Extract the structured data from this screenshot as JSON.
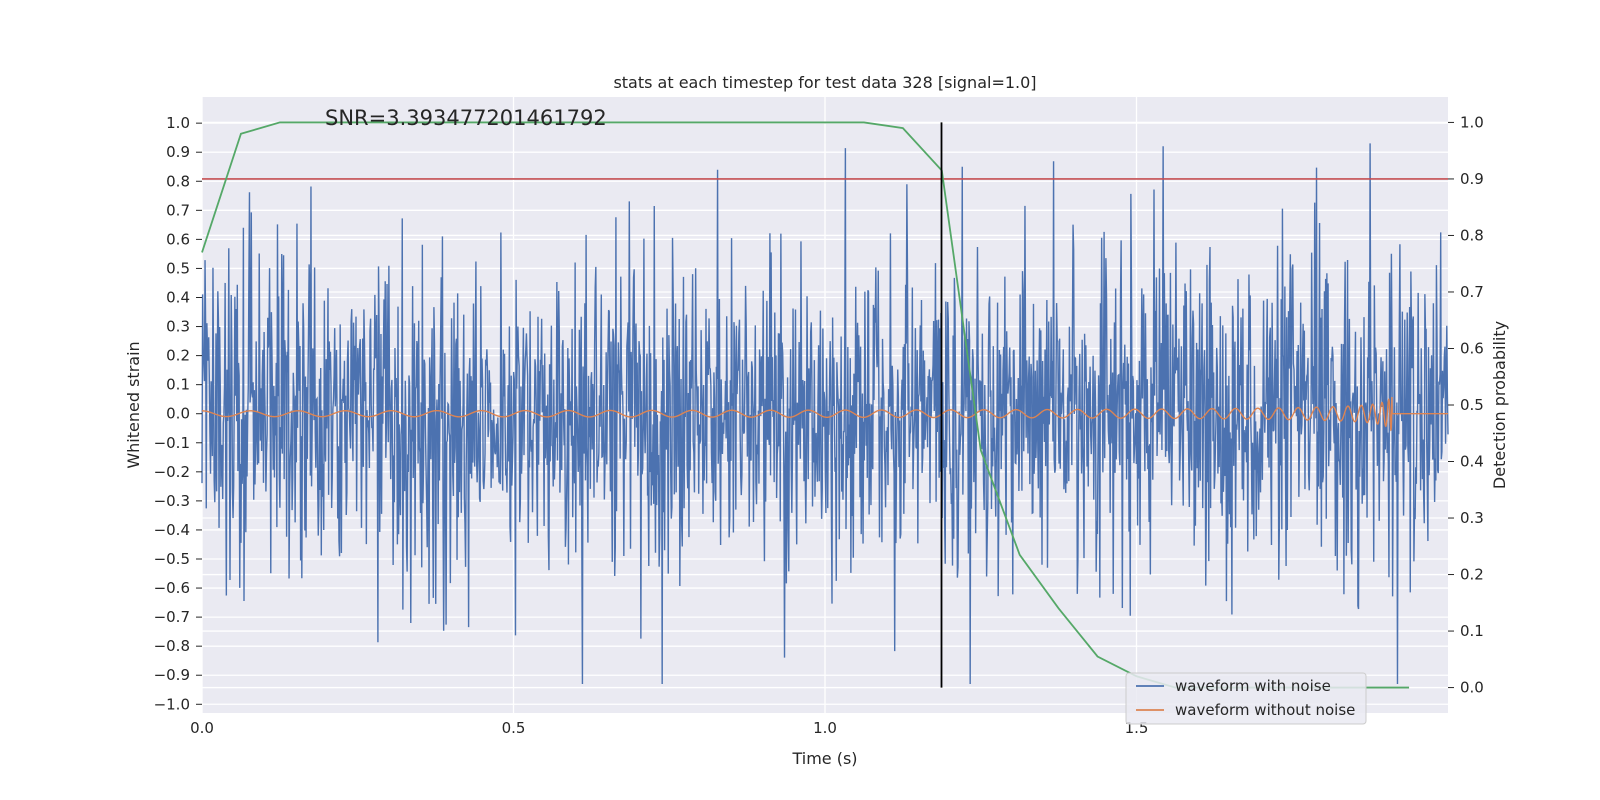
{
  "chart_data": {
    "type": "line",
    "title": "stats at each timestep for test data 328 [signal=1.0]",
    "annotation": "SNR=3.393477201461792",
    "xlabel": "Time (s)",
    "ylabel": "Whitened strain",
    "y2label": "Detection probability",
    "xlim": [
      0.0,
      2.0
    ],
    "ylim": [
      -1.03,
      1.09
    ],
    "y2lim": [
      -0.045,
      1.045
    ],
    "xticks": [
      0.0,
      0.5,
      1.0,
      1.5
    ],
    "xtick_labels": [
      "0.0",
      "0.5",
      "1.0",
      "1.5"
    ],
    "yticks": [
      1.0,
      0.9,
      0.8,
      0.7,
      0.6,
      0.5,
      0.4,
      0.3,
      0.2,
      0.1,
      0.0,
      -0.1,
      -0.2,
      -0.3,
      -0.4,
      -0.5,
      -0.6,
      -0.7,
      -0.8,
      -0.9,
      -1.0
    ],
    "ytick_labels": [
      "1.0",
      "0.9",
      "0.8",
      "0.7",
      "0.6",
      "0.5",
      "0.4",
      "0.3",
      "0.2",
      "0.1",
      "0.0",
      "−0.1",
      "−0.2",
      "−0.3",
      "−0.4",
      "−0.5",
      "−0.6",
      "−0.7",
      "−0.8",
      "−0.9",
      "−1.0"
    ],
    "y2ticks": [
      1.0,
      0.9,
      0.8,
      0.7,
      0.6,
      0.5,
      0.4,
      0.3,
      0.2,
      0.1,
      0.0
    ],
    "y2tick_labels": [
      "1.0",
      "0.9",
      "0.8",
      "0.7",
      "0.6",
      "0.5",
      "0.4",
      "0.3",
      "0.2",
      "0.1",
      "0.0"
    ],
    "grid": true,
    "legend_position": "bottom-right",
    "threshold_line": {
      "axis": "y2",
      "value": 0.9,
      "color": "#c44e52"
    },
    "marker_line": {
      "x": 1.187,
      "y2_from": 0.0,
      "y2_to": 1.0,
      "color": "#000000"
    },
    "series": [
      {
        "name": "waveform with noise",
        "axis": "y",
        "color": "#4c72b0",
        "kind": "noise",
        "t_start": 0.0,
        "t_end": 2.0,
        "n_samples": 2048,
        "amplitude_range": [
          -0.93,
          1.0
        ]
      },
      {
        "name": "waveform without noise",
        "axis": "y",
        "color": "#dd8452",
        "kind": "chirp",
        "t_start": 0.0,
        "t_end": 2.0,
        "merger_time": 1.91,
        "peak_amplitude": 0.1
      },
      {
        "name": "detection probability",
        "axis": "y2",
        "color": "#55a868",
        "x": [
          0.0,
          0.0625,
          0.125,
          0.1875,
          0.25,
          0.3125,
          0.375,
          0.4375,
          0.5,
          0.5625,
          0.625,
          0.6875,
          0.75,
          0.8125,
          0.875,
          0.9375,
          1.0,
          1.0625,
          1.125,
          1.1875,
          1.25,
          1.3125,
          1.375,
          1.4375,
          1.5,
          1.5625,
          1.625,
          1.6875,
          1.75,
          1.8125,
          1.875,
          1.9375
        ],
        "values": [
          0.77,
          0.98,
          1.0,
          1.0,
          1.0,
          1.0,
          1.0,
          1.0,
          1.0,
          1.0,
          1.0,
          1.0,
          1.0,
          1.0,
          1.0,
          1.0,
          1.0,
          1.0,
          0.99,
          0.915,
          0.42,
          0.235,
          0.14,
          0.055,
          0.02,
          0.0,
          0.0,
          0.0,
          0.0,
          0.0,
          0.0,
          0.0
        ]
      }
    ],
    "legend": [
      "waveform with noise",
      "waveform without noise"
    ]
  }
}
